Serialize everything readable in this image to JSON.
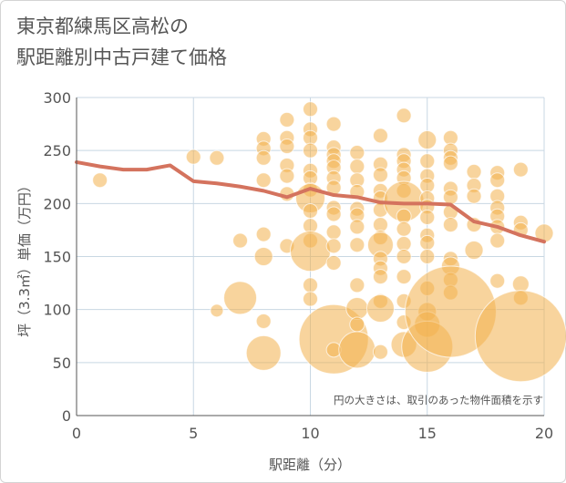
{
  "chart_data": {
    "type": "scatter",
    "title_lines": [
      "東京都練馬区高松の",
      "駅距離別中古戸建て価格"
    ],
    "xlabel": "駅距離（分）",
    "ylabel": "坪（3.3㎡）単価（万円）",
    "annotation": "円の大きさは、取引のあった物件面積を示す",
    "xlim": [
      0,
      20
    ],
    "ylim": [
      0,
      300
    ],
    "xticks": [
      "0",
      "5",
      "10",
      "15",
      "20"
    ],
    "yticks": [
      "0",
      "50",
      "100",
      "150",
      "200",
      "250",
      "300"
    ],
    "grid": true,
    "colors": {
      "bubble": "#f2b04c",
      "trend": "#d4735e",
      "grid": "#c8d7e3",
      "axis": "#555555"
    },
    "bubbles": [
      {
        "x": 1,
        "y": 222,
        "s": 8
      },
      {
        "x": 5,
        "y": 244,
        "s": 8
      },
      {
        "x": 6,
        "y": 243,
        "s": 8
      },
      {
        "x": 6,
        "y": 99,
        "s": 7
      },
      {
        "x": 7,
        "y": 165,
        "s": 8
      },
      {
        "x": 7,
        "y": 111,
        "s": 18
      },
      {
        "x": 8,
        "y": 261,
        "s": 8
      },
      {
        "x": 8,
        "y": 252,
        "s": 8
      },
      {
        "x": 8,
        "y": 243,
        "s": 8
      },
      {
        "x": 8,
        "y": 222,
        "s": 8
      },
      {
        "x": 8,
        "y": 171,
        "s": 8
      },
      {
        "x": 8,
        "y": 150,
        "s": 10
      },
      {
        "x": 8,
        "y": 89,
        "s": 8
      },
      {
        "x": 8,
        "y": 59,
        "s": 19
      },
      {
        "x": 9,
        "y": 279,
        "s": 8
      },
      {
        "x": 9,
        "y": 262,
        "s": 8
      },
      {
        "x": 9,
        "y": 254,
        "s": 8
      },
      {
        "x": 9,
        "y": 236,
        "s": 8
      },
      {
        "x": 9,
        "y": 226,
        "s": 8
      },
      {
        "x": 9,
        "y": 209,
        "s": 8
      },
      {
        "x": 9,
        "y": 160,
        "s": 8
      },
      {
        "x": 10,
        "y": 289,
        "s": 8
      },
      {
        "x": 10,
        "y": 270,
        "s": 8
      },
      {
        "x": 10,
        "y": 262,
        "s": 8
      },
      {
        "x": 10,
        "y": 250,
        "s": 8
      },
      {
        "x": 10,
        "y": 231,
        "s": 8
      },
      {
        "x": 10,
        "y": 224,
        "s": 8
      },
      {
        "x": 10,
        "y": 213,
        "s": 8
      },
      {
        "x": 10,
        "y": 205,
        "s": 16
      },
      {
        "x": 10,
        "y": 193,
        "s": 8
      },
      {
        "x": 10,
        "y": 179,
        "s": 8
      },
      {
        "x": 10,
        "y": 165,
        "s": 8
      },
      {
        "x": 10,
        "y": 155,
        "s": 22
      },
      {
        "x": 10,
        "y": 123,
        "s": 8
      },
      {
        "x": 10,
        "y": 110,
        "s": 8
      },
      {
        "x": 11,
        "y": 275,
        "s": 8
      },
      {
        "x": 11,
        "y": 253,
        "s": 8
      },
      {
        "x": 11,
        "y": 246,
        "s": 8
      },
      {
        "x": 11,
        "y": 240,
        "s": 8
      },
      {
        "x": 11,
        "y": 234,
        "s": 8
      },
      {
        "x": 11,
        "y": 224,
        "s": 8
      },
      {
        "x": 11,
        "y": 215,
        "s": 8
      },
      {
        "x": 11,
        "y": 196,
        "s": 8
      },
      {
        "x": 11,
        "y": 190,
        "s": 8
      },
      {
        "x": 11,
        "y": 173,
        "s": 8
      },
      {
        "x": 11,
        "y": 160,
        "s": 8
      },
      {
        "x": 11,
        "y": 144,
        "s": 8
      },
      {
        "x": 11,
        "y": 72,
        "s": 38
      },
      {
        "x": 11,
        "y": 62,
        "s": 8
      },
      {
        "x": 12,
        "y": 248,
        "s": 8
      },
      {
        "x": 12,
        "y": 235,
        "s": 8
      },
      {
        "x": 12,
        "y": 222,
        "s": 8
      },
      {
        "x": 12,
        "y": 211,
        "s": 8
      },
      {
        "x": 12,
        "y": 195,
        "s": 8
      },
      {
        "x": 12,
        "y": 189,
        "s": 8
      },
      {
        "x": 12,
        "y": 178,
        "s": 8
      },
      {
        "x": 12,
        "y": 161,
        "s": 8
      },
      {
        "x": 12,
        "y": 123,
        "s": 8
      },
      {
        "x": 12,
        "y": 101,
        "s": 12
      },
      {
        "x": 12,
        "y": 86,
        "s": 8
      },
      {
        "x": 12,
        "y": 62,
        "s": 20
      },
      {
        "x": 13,
        "y": 264,
        "s": 8
      },
      {
        "x": 13,
        "y": 237,
        "s": 8
      },
      {
        "x": 13,
        "y": 227,
        "s": 8
      },
      {
        "x": 13,
        "y": 212,
        "s": 8
      },
      {
        "x": 13,
        "y": 205,
        "s": 8
      },
      {
        "x": 13,
        "y": 194,
        "s": 8
      },
      {
        "x": 13,
        "y": 180,
        "s": 8
      },
      {
        "x": 13,
        "y": 168,
        "s": 8
      },
      {
        "x": 13,
        "y": 161,
        "s": 14
      },
      {
        "x": 13,
        "y": 148,
        "s": 8
      },
      {
        "x": 13,
        "y": 139,
        "s": 8
      },
      {
        "x": 13,
        "y": 131,
        "s": 8
      },
      {
        "x": 13,
        "y": 108,
        "s": 8
      },
      {
        "x": 13,
        "y": 101,
        "s": 15
      },
      {
        "x": 13,
        "y": 60,
        "s": 8
      },
      {
        "x": 14,
        "y": 283,
        "s": 8
      },
      {
        "x": 14,
        "y": 246,
        "s": 8
      },
      {
        "x": 14,
        "y": 240,
        "s": 8
      },
      {
        "x": 14,
        "y": 232,
        "s": 8
      },
      {
        "x": 14,
        "y": 224,
        "s": 8
      },
      {
        "x": 14,
        "y": 212,
        "s": 8
      },
      {
        "x": 14,
        "y": 202,
        "s": 22
      },
      {
        "x": 14,
        "y": 188,
        "s": 8
      },
      {
        "x": 14,
        "y": 176,
        "s": 8
      },
      {
        "x": 14,
        "y": 162,
        "s": 8
      },
      {
        "x": 14,
        "y": 150,
        "s": 8
      },
      {
        "x": 14,
        "y": 131,
        "s": 8
      },
      {
        "x": 14,
        "y": 108,
        "s": 8
      },
      {
        "x": 14,
        "y": 88,
        "s": 8
      },
      {
        "x": 14,
        "y": 67,
        "s": 14
      },
      {
        "x": 15,
        "y": 260,
        "s": 10
      },
      {
        "x": 15,
        "y": 240,
        "s": 8
      },
      {
        "x": 15,
        "y": 226,
        "s": 8
      },
      {
        "x": 15,
        "y": 217,
        "s": 8
      },
      {
        "x": 15,
        "y": 205,
        "s": 8
      },
      {
        "x": 15,
        "y": 197,
        "s": 8
      },
      {
        "x": 15,
        "y": 187,
        "s": 8
      },
      {
        "x": 15,
        "y": 170,
        "s": 8
      },
      {
        "x": 15,
        "y": 163,
        "s": 8
      },
      {
        "x": 15,
        "y": 150,
        "s": 8
      },
      {
        "x": 15,
        "y": 120,
        "s": 8
      },
      {
        "x": 15,
        "y": 98,
        "s": 10
      },
      {
        "x": 15,
        "y": 86,
        "s": 14
      },
      {
        "x": 15,
        "y": 65,
        "s": 28
      },
      {
        "x": 16,
        "y": 262,
        "s": 8
      },
      {
        "x": 16,
        "y": 250,
        "s": 8
      },
      {
        "x": 16,
        "y": 243,
        "s": 8
      },
      {
        "x": 16,
        "y": 238,
        "s": 8
      },
      {
        "x": 16,
        "y": 214,
        "s": 8
      },
      {
        "x": 16,
        "y": 206,
        "s": 8
      },
      {
        "x": 16,
        "y": 192,
        "s": 8
      },
      {
        "x": 16,
        "y": 180,
        "s": 8
      },
      {
        "x": 16,
        "y": 148,
        "s": 8
      },
      {
        "x": 16,
        "y": 141,
        "s": 10
      },
      {
        "x": 16,
        "y": 128,
        "s": 8
      },
      {
        "x": 16,
        "y": 116,
        "s": 8
      },
      {
        "x": 16,
        "y": 98,
        "s": 50
      },
      {
        "x": 17,
        "y": 230,
        "s": 8
      },
      {
        "x": 17,
        "y": 217,
        "s": 8
      },
      {
        "x": 17,
        "y": 207,
        "s": 8
      },
      {
        "x": 17,
        "y": 180,
        "s": 8
      },
      {
        "x": 17,
        "y": 156,
        "s": 10
      },
      {
        "x": 18,
        "y": 229,
        "s": 8
      },
      {
        "x": 18,
        "y": 222,
        "s": 8
      },
      {
        "x": 18,
        "y": 207,
        "s": 8
      },
      {
        "x": 18,
        "y": 196,
        "s": 8
      },
      {
        "x": 18,
        "y": 188,
        "s": 8
      },
      {
        "x": 18,
        "y": 178,
        "s": 8
      },
      {
        "x": 18,
        "y": 165,
        "s": 8
      },
      {
        "x": 18,
        "y": 127,
        "s": 8
      },
      {
        "x": 19,
        "y": 232,
        "s": 8
      },
      {
        "x": 19,
        "y": 182,
        "s": 8
      },
      {
        "x": 19,
        "y": 175,
        "s": 8
      },
      {
        "x": 19,
        "y": 124,
        "s": 9
      },
      {
        "x": 19,
        "y": 111,
        "s": 8
      },
      {
        "x": 19,
        "y": 75,
        "s": 50
      },
      {
        "x": 20,
        "y": 172,
        "s": 10
      }
    ],
    "trend": {
      "x": [
        0,
        1,
        2,
        3,
        4,
        5,
        6,
        7,
        8,
        9,
        10,
        11,
        12,
        13,
        14,
        15,
        16,
        17,
        18,
        19,
        20
      ],
      "y": [
        239,
        235,
        232,
        232,
        236,
        221,
        219,
        216,
        212,
        206,
        214,
        208,
        206,
        201,
        200,
        200,
        199,
        183,
        178,
        170,
        164
      ]
    }
  }
}
